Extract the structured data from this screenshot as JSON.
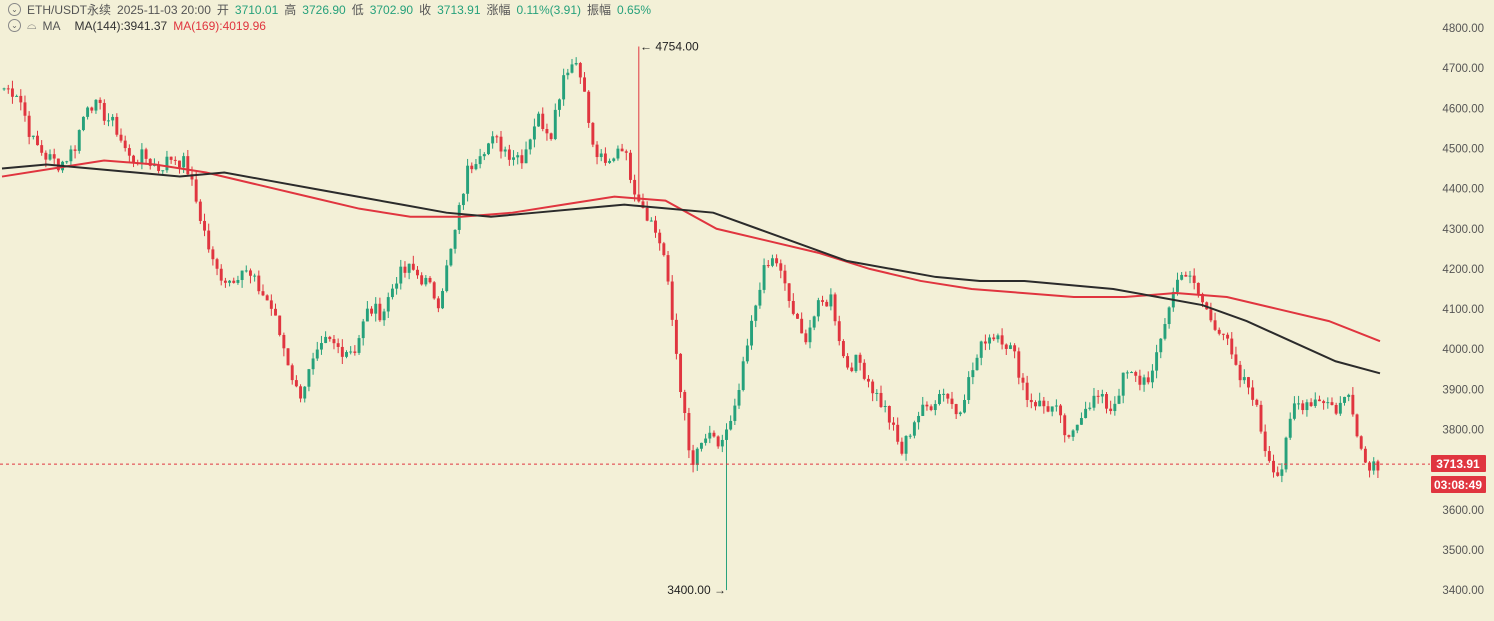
{
  "header": {
    "symbol": "ETH/USDT永续",
    "datetime": "2025-11-03 20:00",
    "open_label": "开",
    "open": "3710.01",
    "high_label": "高",
    "high": "3726.90",
    "low_label": "低",
    "low": "3702.90",
    "close_label": "收",
    "close": "3713.91",
    "change_label": "涨幅",
    "change": "0.11%(3.91)",
    "amp_label": "振幅",
    "amp": "0.65%"
  },
  "indicators": {
    "name": "MA",
    "ma144": "MA(144):3941.37",
    "ma169": "MA(169):4019.96"
  },
  "price_tag": {
    "price": "3713.91",
    "countdown": "03:08:49"
  },
  "colors": {
    "up": "#26a17b",
    "down": "#e0353f",
    "ma144": "#2b2b2b",
    "ma169": "#e0353f",
    "bg": "#f3f0d7"
  },
  "chart_data": {
    "type": "candlestick",
    "title": "ETH/USDT永续",
    "ylim": [
      3350,
      4830
    ],
    "yticks": [
      "4800.00",
      "4700.00",
      "4600.00",
      "4500.00",
      "4400.00",
      "4300.00",
      "4200.00",
      "4100.00",
      "4000.00",
      "3900.00",
      "3800.00",
      "3600.00",
      "3500.00",
      "3400.00"
    ],
    "annotations": [
      {
        "text": "4754.00",
        "value": 4754,
        "kind": "high"
      },
      {
        "text": "3400.00",
        "value": 3400,
        "kind": "low"
      }
    ],
    "current_price": 3713.91,
    "close_path": [
      4650,
      4640,
      4520,
      4480,
      4460,
      4500,
      4620,
      4590,
      4550,
      4470,
      4480,
      4450,
      4480,
      4460,
      4330,
      4200,
      4170,
      4200,
      4160,
      4110,
      4000,
      3880,
      3960,
      4020,
      4000,
      4000,
      4100,
      4090,
      4180,
      4200,
      4170,
      4120,
      4260,
      4440,
      4500,
      4520,
      4490,
      4480,
      4580,
      4540,
      4700,
      4720,
      4500,
      4450,
      4520,
      4400,
      4330,
      4250,
      3980,
      3700,
      3780,
      3760,
      3820,
      4000,
      4180,
      4230,
      4120,
      4020,
      4100,
      4130,
      3960,
      3970,
      3900,
      3840,
      3740,
      3830,
      3860,
      3900,
      3840,
      3940,
      4030,
      4040,
      3990,
      3880,
      3860,
      3850,
      3760,
      3860,
      3880,
      3850,
      3940,
      3920,
      3940,
      4100,
      4200,
      4150,
      4080,
      4040,
      3930,
      3900,
      3750,
      3680,
      3860,
      3870,
      3880,
      3850,
      3890,
      3720,
      3714
    ],
    "ma144": [
      4450,
      4460,
      4450,
      4440,
      4430,
      4440,
      4420,
      4400,
      4380,
      4360,
      4340,
      4330,
      4340,
      4350,
      4360,
      4350,
      4340,
      4300,
      4260,
      4220,
      4200,
      4180,
      4170,
      4170,
      4160,
      4150,
      4130,
      4110,
      4070,
      4020,
      3970,
      3940
    ],
    "ma169": [
      4430,
      4450,
      4470,
      4460,
      4440,
      4410,
      4380,
      4350,
      4330,
      4330,
      4340,
      4360,
      4380,
      4370,
      4300,
      4270,
      4240,
      4200,
      4170,
      4150,
      4140,
      4130,
      4130,
      4140,
      4130,
      4100,
      4070,
      4020
    ]
  }
}
